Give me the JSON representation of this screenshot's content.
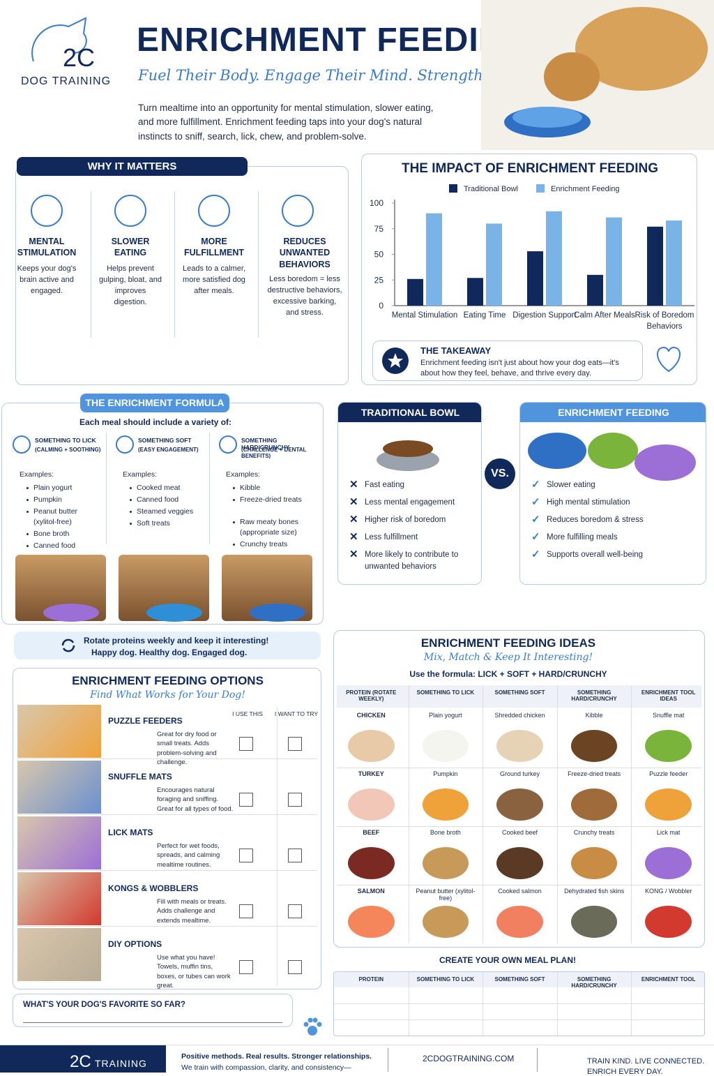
{
  "header": {
    "brand": "2C",
    "brand_sub": "DOG TRAINING",
    "title": "ENRICHMENT FEEDING",
    "tagline": "Fuel Their Body. Engage Their Mind. Strengthen Your Bond.",
    "intro": "Turn mealtime into an opportunity for mental stimulation, slower eating, and more fulfillment. Enrichment feeding taps into your dog's natural instincts to sniff, search, lick, chew, and problem-solve."
  },
  "why": {
    "title": "WHY IT MATTERS",
    "items": [
      {
        "title": "MENTAL STIMULATION",
        "text": "Keeps your dog's brain active and engaged."
      },
      {
        "title": "SLOWER EATING",
        "text": "Helps prevent gulping, bloat, and improves digestion."
      },
      {
        "title": "MORE FULFILLMENT",
        "text": "Leads to a calmer, more satisfied dog after meals."
      },
      {
        "title": "REDUCES UNWANTED BEHAVIORS",
        "text": "Less boredom = less destructive behaviors, excessive barking, and stress."
      }
    ]
  },
  "chart_data": {
    "type": "bar",
    "title": "THE IMPACT OF ENRICHMENT FEEDING",
    "categories": [
      "Mental Stimulation",
      "Eating Time",
      "Digestion Support",
      "Calm After Meals",
      "Risk of Boredom Behaviors"
    ],
    "series": [
      {
        "name": "Traditional Bowl",
        "color": "#10295a",
        "values": [
          26,
          27,
          53,
          30,
          77
        ]
      },
      {
        "name": "Enrichment Feeding",
        "color": "#7ab3e8",
        "values": [
          90,
          80,
          92,
          86,
          83
        ]
      }
    ],
    "ylim": [
      0,
      100
    ],
    "yticks": [
      0,
      25,
      50,
      75,
      100
    ],
    "grid": false,
    "legend": "top"
  },
  "takeaway": {
    "title": "THE TAKEAWAY",
    "text": "Enrichment feeding isn't just about how your dog eats—it's about how they feel, behave, and thrive every day."
  },
  "formula": {
    "title": "THE ENRICHMENT FORMULA",
    "subtitle": "Each meal should include a variety of:",
    "examples_label": "Examples:",
    "columns": [
      {
        "title": "SOMETHING TO LICK",
        "subtitle": "(CALMING + SOOTHING)",
        "examples": [
          "Plain yogurt",
          "Pumpkin",
          "Peanut butter (xylitol-free)",
          "Bone broth",
          "Canned food"
        ]
      },
      {
        "title": "SOMETHING SOFT",
        "subtitle": "(EASY ENGAGEMENT)",
        "examples": [
          "Cooked meat",
          "Canned food",
          "Steamed veggies",
          "Soft treats"
        ]
      },
      {
        "title": "SOMETHING HARD/CRUNCHY",
        "subtitle": "(CHALLENGE + DENTAL BENEFITS)",
        "examples": [
          "Kibble",
          "Freeze-dried treats",
          "Raw meaty bones (appropriate size)",
          "Crunchy treats"
        ]
      }
    ]
  },
  "rotate": {
    "line1": "Rotate proteins weekly and keep it interesting!",
    "line2": "Happy dog. Healthy dog. Engaged dog."
  },
  "compare": {
    "vs": "VS.",
    "traditional": {
      "title": "TRADITIONAL BOWL",
      "items": [
        "Fast eating",
        "Less mental engagement",
        "Higher risk of boredom",
        "Less fulfillment",
        "More likely to contribute to unwanted behaviors"
      ]
    },
    "enrichment": {
      "title": "ENRICHMENT FEEDING",
      "items": [
        "Slower eating",
        "High mental stimulation",
        "Reduces boredom & stress",
        "More fulfilling meals",
        "Supports overall well-being"
      ]
    }
  },
  "options": {
    "title": "ENRICHMENT FEEDING OPTIONS",
    "subtitle": "Find What Works for Your Dog!",
    "columns": [
      "I USE THIS",
      "I WANT TO TRY"
    ],
    "rows": [
      {
        "name": "PUZZLE FEEDERS",
        "text": "Great for dry food or small treats. Adds problem-solving and challenge."
      },
      {
        "name": "SNUFFLE MATS",
        "text": "Encourages natural foraging and sniffing. Great for all types of food."
      },
      {
        "name": "LICK MATS",
        "text": "Perfect for wet foods, spreads, and calming mealtime routines."
      },
      {
        "name": "KONGS & WOBBLERS",
        "text": "Fill with meals or treats. Adds challenge and extends mealtime."
      },
      {
        "name": "DIY OPTIONS",
        "text": "Use what you have! Towels, muffin tins, boxes, or tubes can work great."
      }
    ],
    "favorite": "WHAT'S YOUR DOG'S FAVORITE SO FAR?"
  },
  "ideas": {
    "title": "ENRICHMENT FEEDING IDEAS",
    "subtitle": "Mix, Match & Keep It Interesting!",
    "formula": "Use the formula: LICK + SOFT + HARD/CRUNCHY",
    "headers": [
      "PROTEIN (ROTATE WEEKLY)",
      "SOMETHING TO LICK",
      "SOMETHING SOFT",
      "SOMETHING HARD/CRUNCHY",
      "ENRICHMENT TOOL IDEAS"
    ],
    "rows": [
      [
        "CHICKEN",
        "Plain yogurt",
        "Shredded chicken",
        "Kibble",
        "Snuffle mat"
      ],
      [
        "TURKEY",
        "Pumpkin",
        "Ground turkey",
        "Freeze-dried treats",
        "Puzzle feeder"
      ],
      [
        "BEEF",
        "Bone broth",
        "Cooked beef",
        "Crunchy treats",
        "Lick mat"
      ],
      [
        "SALMON",
        "Peanut butter (xylitol-free)",
        "Cooked salmon",
        "Dehydrated fish skins",
        "KONG / Wobbler"
      ]
    ]
  },
  "meal_plan": {
    "title": "CREATE YOUR OWN MEAL PLAN!",
    "headers": [
      "PROTEIN",
      "SOMETHING TO LICK",
      "SOMETHING SOFT",
      "SOMETHING HARD/CRUNCHY",
      "ENRICHMENT TOOL"
    ]
  },
  "footer": {
    "brand": "2C",
    "brand_sub": "TRAINING",
    "tagline": "Positive methods. Real results. Stronger relationships.",
    "text": "We train with compassion, clarity, and consistency—",
    "website": "2CDOGTRAINING.COM",
    "slogan1": "TRAIN KIND. LIVE CONNECTED.",
    "slogan2": "ENRICH EVERY DAY."
  }
}
